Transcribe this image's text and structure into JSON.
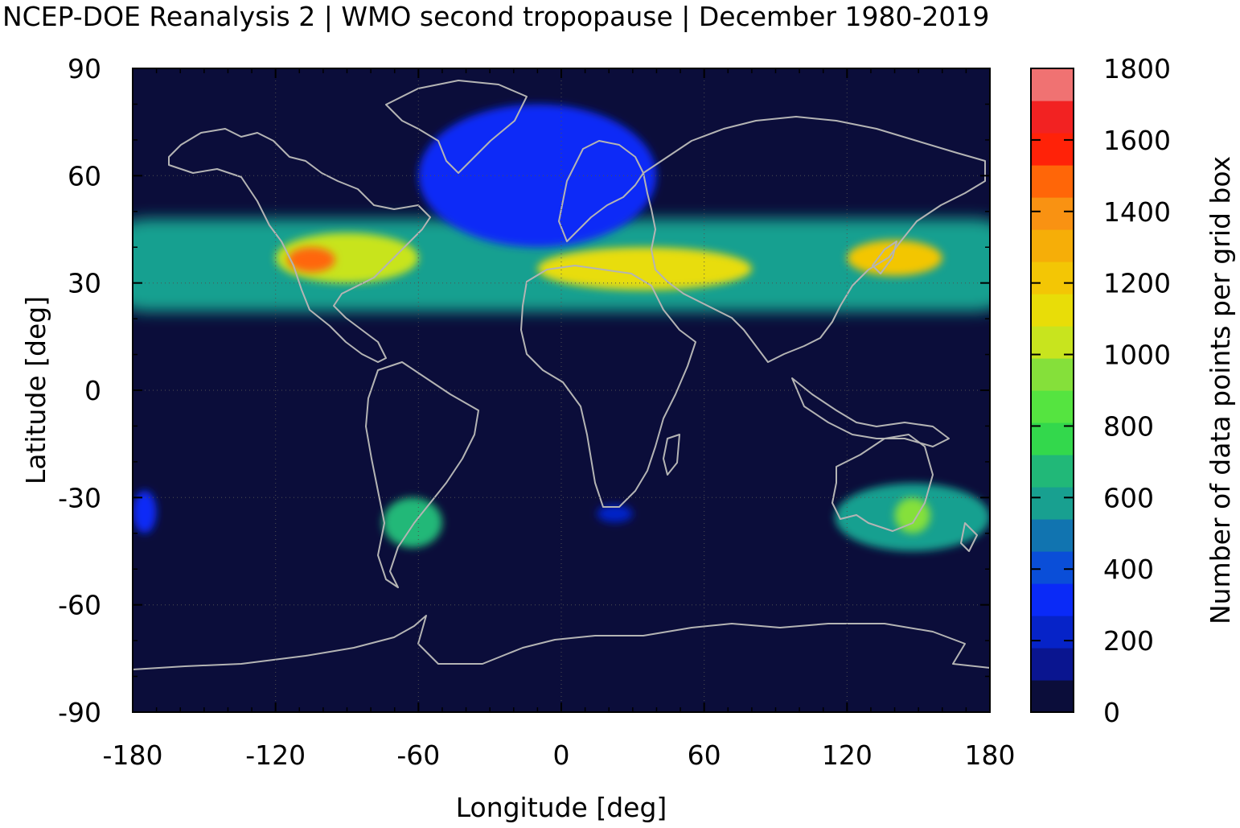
{
  "chart_data": {
    "type": "heatmap",
    "title": "NCEP-DOE Reanalysis 2 | WMO second tropopause | December 1980-2019",
    "xlabel": "Longitude [deg]",
    "ylabel": "Latitude [deg]",
    "colorbar_label": "Number of data points per grid box",
    "xlim": [
      -180,
      180
    ],
    "ylim": [
      -90,
      90
    ],
    "x_ticks": [
      -180,
      -120,
      -60,
      0,
      60,
      120,
      180
    ],
    "y_ticks": [
      90,
      60,
      30,
      0,
      -30,
      -60,
      -90
    ],
    "x_tick_labels": [
      "-180",
      "-120",
      "-60",
      "0",
      "60",
      "120",
      "180"
    ],
    "y_tick_labels": [
      "90",
      "60",
      "30",
      "0",
      "-30",
      "-60",
      "-90"
    ],
    "colorbar_ticks": [
      1800,
      1600,
      1400,
      1200,
      1000,
      800,
      600,
      400,
      200,
      0
    ],
    "colorbar_tick_labels": [
      "1800",
      "1600",
      "1400",
      "1200",
      "1000",
      "800",
      "600",
      "400",
      "200",
      "0"
    ],
    "colorbar_range": [
      0,
      1800
    ],
    "colorbar_levels": [
      0,
      90,
      180,
      270,
      360,
      450,
      540,
      630,
      720,
      810,
      900,
      990,
      1080,
      1170,
      1260,
      1350,
      1440,
      1530,
      1620,
      1710,
      1800
    ],
    "colorbar_colors": [
      "#0b0d3a",
      "#0a1590",
      "#0623c8",
      "#0a2af7",
      "#0a4ed8",
      "#1174b0",
      "#18a090",
      "#21b878",
      "#33d84c",
      "#55e440",
      "#85e03a",
      "#c8e41e",
      "#e8dd08",
      "#f3c605",
      "#f6ae08",
      "#f99212",
      "#ff6608",
      "#ff2208",
      "#f22222",
      "#f07272",
      "#fbcccc"
    ],
    "background_value": 0,
    "grid": true,
    "coastlines": true,
    "features": [
      {
        "lon": [
          -180,
          180
        ],
        "lat": [
          22,
          48
        ],
        "value": 600
      },
      {
        "lon": [
          -120,
          -60
        ],
        "lat": [
          30,
          44
        ],
        "value": 1000
      },
      {
        "lon": [
          -115,
          -95
        ],
        "lat": [
          33,
          40
        ],
        "value": 1450
      },
      {
        "lon": [
          -10,
          80
        ],
        "lat": [
          28,
          40
        ],
        "value": 1100
      },
      {
        "lon": [
          120,
          160
        ],
        "lat": [
          32,
          42
        ],
        "value": 1250
      },
      {
        "lon": [
          -60,
          40
        ],
        "lat": [
          40,
          80
        ],
        "value": 300
      },
      {
        "lon": [
          115,
          180
        ],
        "lat": [
          -45,
          -26
        ],
        "value": 550
      },
      {
        "lon": [
          140,
          155
        ],
        "lat": [
          -40,
          -30
        ],
        "value": 950
      },
      {
        "lon": [
          -75,
          -50
        ],
        "lat": [
          -44,
          -30
        ],
        "value": 700
      },
      {
        "lon": [
          -180,
          -170
        ],
        "lat": [
          -40,
          -28
        ],
        "value": 300
      },
      {
        "lon": [
          15,
          30
        ],
        "lat": [
          -37,
          -32
        ],
        "value": 200
      }
    ]
  }
}
